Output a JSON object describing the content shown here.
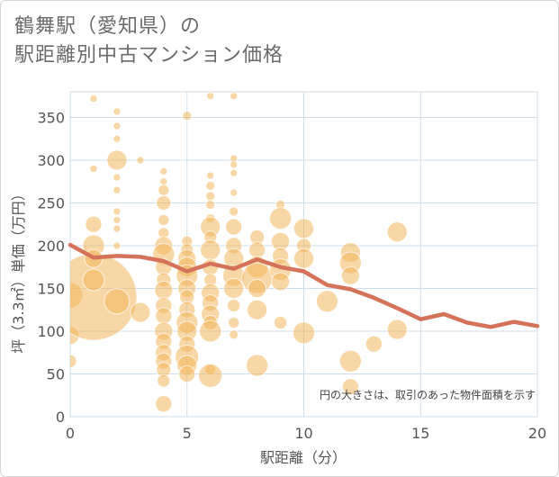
{
  "title": {
    "line1": "鶴舞駅（愛知県）の",
    "line2": "駅距離別中古マンション価格"
  },
  "chart_data": {
    "type": "scatter",
    "title": "鶴舞駅（愛知県）の 駅距離別中古マンション価格",
    "xlabel": "駅距離（分）",
    "ylabel": "坪（3.3㎡）単価（万円）",
    "xlim": [
      0,
      20
    ],
    "ylim": [
      0,
      380
    ],
    "xticks": [
      0,
      5,
      10,
      15,
      20
    ],
    "yticks": [
      0,
      50,
      100,
      150,
      200,
      250,
      300,
      350
    ],
    "grid": true,
    "note": "円の大きさは、取引のあった物件面積を示す",
    "colors": {
      "bubble": "#f2b75c",
      "line": "#d4735a",
      "grid": "#cfdde9"
    },
    "series": [
      {
        "kind": "bubble",
        "points": [
          [
            0,
            142,
            14
          ],
          [
            0,
            95,
            10
          ],
          [
            0,
            65,
            7
          ],
          [
            1,
            140,
            48
          ],
          [
            1,
            200,
            12
          ],
          [
            1,
            185,
            10
          ],
          [
            1,
            160,
            12
          ],
          [
            1,
            225,
            9
          ],
          [
            1,
            372,
            4
          ],
          [
            1,
            290,
            4
          ],
          [
            2,
            357,
            4
          ],
          [
            2,
            340,
            4
          ],
          [
            2,
            325,
            4
          ],
          [
            2,
            300,
            11
          ],
          [
            2,
            280,
            4
          ],
          [
            2,
            265,
            4
          ],
          [
            2,
            240,
            4
          ],
          [
            2,
            230,
            4
          ],
          [
            2,
            220,
            4
          ],
          [
            2,
            200,
            4
          ],
          [
            2,
            135,
            14
          ],
          [
            3,
            300,
            4
          ],
          [
            3,
            122,
            11
          ],
          [
            4,
            287,
            4
          ],
          [
            4,
            275,
            4
          ],
          [
            4,
            265,
            6
          ],
          [
            4,
            250,
            8
          ],
          [
            4,
            230,
            6
          ],
          [
            4,
            215,
            6
          ],
          [
            4,
            200,
            10
          ],
          [
            4,
            190,
            12
          ],
          [
            4,
            175,
            9
          ],
          [
            4,
            160,
            8
          ],
          [
            4,
            148,
            10
          ],
          [
            4,
            130,
            9
          ],
          [
            4,
            118,
            9
          ],
          [
            4,
            100,
            10
          ],
          [
            4,
            88,
            9
          ],
          [
            4,
            75,
            9
          ],
          [
            4,
            65,
            9
          ],
          [
            4,
            55,
            8
          ],
          [
            4,
            42,
            7
          ],
          [
            4,
            15,
            9
          ],
          [
            5,
            352,
            5
          ],
          [
            5,
            205,
            6
          ],
          [
            5,
            195,
            7
          ],
          [
            5,
            185,
            10
          ],
          [
            5,
            175,
            11
          ],
          [
            5,
            165,
            12
          ],
          [
            5,
            150,
            10
          ],
          [
            5,
            140,
            8
          ],
          [
            5,
            125,
            9
          ],
          [
            5,
            110,
            12
          ],
          [
            5,
            100,
            11
          ],
          [
            5,
            85,
            9
          ],
          [
            5,
            70,
            13
          ],
          [
            5,
            60,
            11
          ],
          [
            5,
            50,
            9
          ],
          [
            6,
            375,
            4
          ],
          [
            6,
            282,
            4
          ],
          [
            6,
            270,
            5
          ],
          [
            6,
            258,
            5
          ],
          [
            6,
            248,
            5
          ],
          [
            6,
            232,
            5
          ],
          [
            6,
            222,
            11
          ],
          [
            6,
            210,
            7
          ],
          [
            6,
            195,
            11
          ],
          [
            6,
            175,
            9
          ],
          [
            6,
            160,
            7
          ],
          [
            6,
            145,
            10
          ],
          [
            6,
            133,
            9
          ],
          [
            6,
            120,
            10
          ],
          [
            6,
            110,
            8
          ],
          [
            6,
            100,
            12
          ],
          [
            6,
            55,
            6
          ],
          [
            6,
            48,
            13
          ],
          [
            7,
            375,
            4
          ],
          [
            7,
            302,
            4
          ],
          [
            7,
            295,
            4
          ],
          [
            7,
            285,
            4
          ],
          [
            7,
            262,
            4
          ],
          [
            7,
            240,
            5
          ],
          [
            7,
            222,
            9
          ],
          [
            7,
            200,
            9
          ],
          [
            7,
            185,
            11
          ],
          [
            7,
            165,
            12
          ],
          [
            7,
            150,
            11
          ],
          [
            7,
            130,
            7
          ],
          [
            7,
            110,
            6
          ],
          [
            7,
            96,
            5
          ],
          [
            8,
            210,
            8
          ],
          [
            8,
            195,
            9
          ],
          [
            8,
            175,
            12
          ],
          [
            8,
            162,
            17
          ],
          [
            8,
            150,
            10
          ],
          [
            8,
            125,
            11
          ],
          [
            8,
            60,
            12
          ],
          [
            9,
            248,
            5
          ],
          [
            9,
            232,
            12
          ],
          [
            9,
            205,
            10
          ],
          [
            9,
            188,
            9
          ],
          [
            9,
            172,
            12
          ],
          [
            9,
            158,
            10
          ],
          [
            9,
            110,
            7
          ],
          [
            10,
            220,
            11
          ],
          [
            10,
            200,
            8
          ],
          [
            10,
            185,
            11
          ],
          [
            10,
            98,
            12
          ],
          [
            11,
            135,
            12
          ],
          [
            12,
            192,
            11
          ],
          [
            12,
            180,
            12
          ],
          [
            12,
            165,
            10
          ],
          [
            12,
            65,
            12
          ],
          [
            12,
            35,
            9
          ],
          [
            13,
            85,
            9
          ],
          [
            14,
            216,
            11
          ],
          [
            14,
            102,
            11
          ]
        ]
      },
      {
        "kind": "line",
        "points": [
          [
            0,
            201
          ],
          [
            1,
            186
          ],
          [
            2,
            188
          ],
          [
            3,
            187
          ],
          [
            4,
            182
          ],
          [
            5,
            170
          ],
          [
            6,
            179
          ],
          [
            7,
            173
          ],
          [
            8,
            184
          ],
          [
            9,
            175
          ],
          [
            10,
            170
          ],
          [
            11,
            154
          ],
          [
            12,
            149
          ],
          [
            13,
            139
          ],
          [
            14,
            127
          ],
          [
            15,
            114
          ],
          [
            16,
            120
          ],
          [
            17,
            110
          ],
          [
            18,
            105
          ],
          [
            19,
            111
          ],
          [
            20,
            106
          ]
        ]
      }
    ]
  }
}
